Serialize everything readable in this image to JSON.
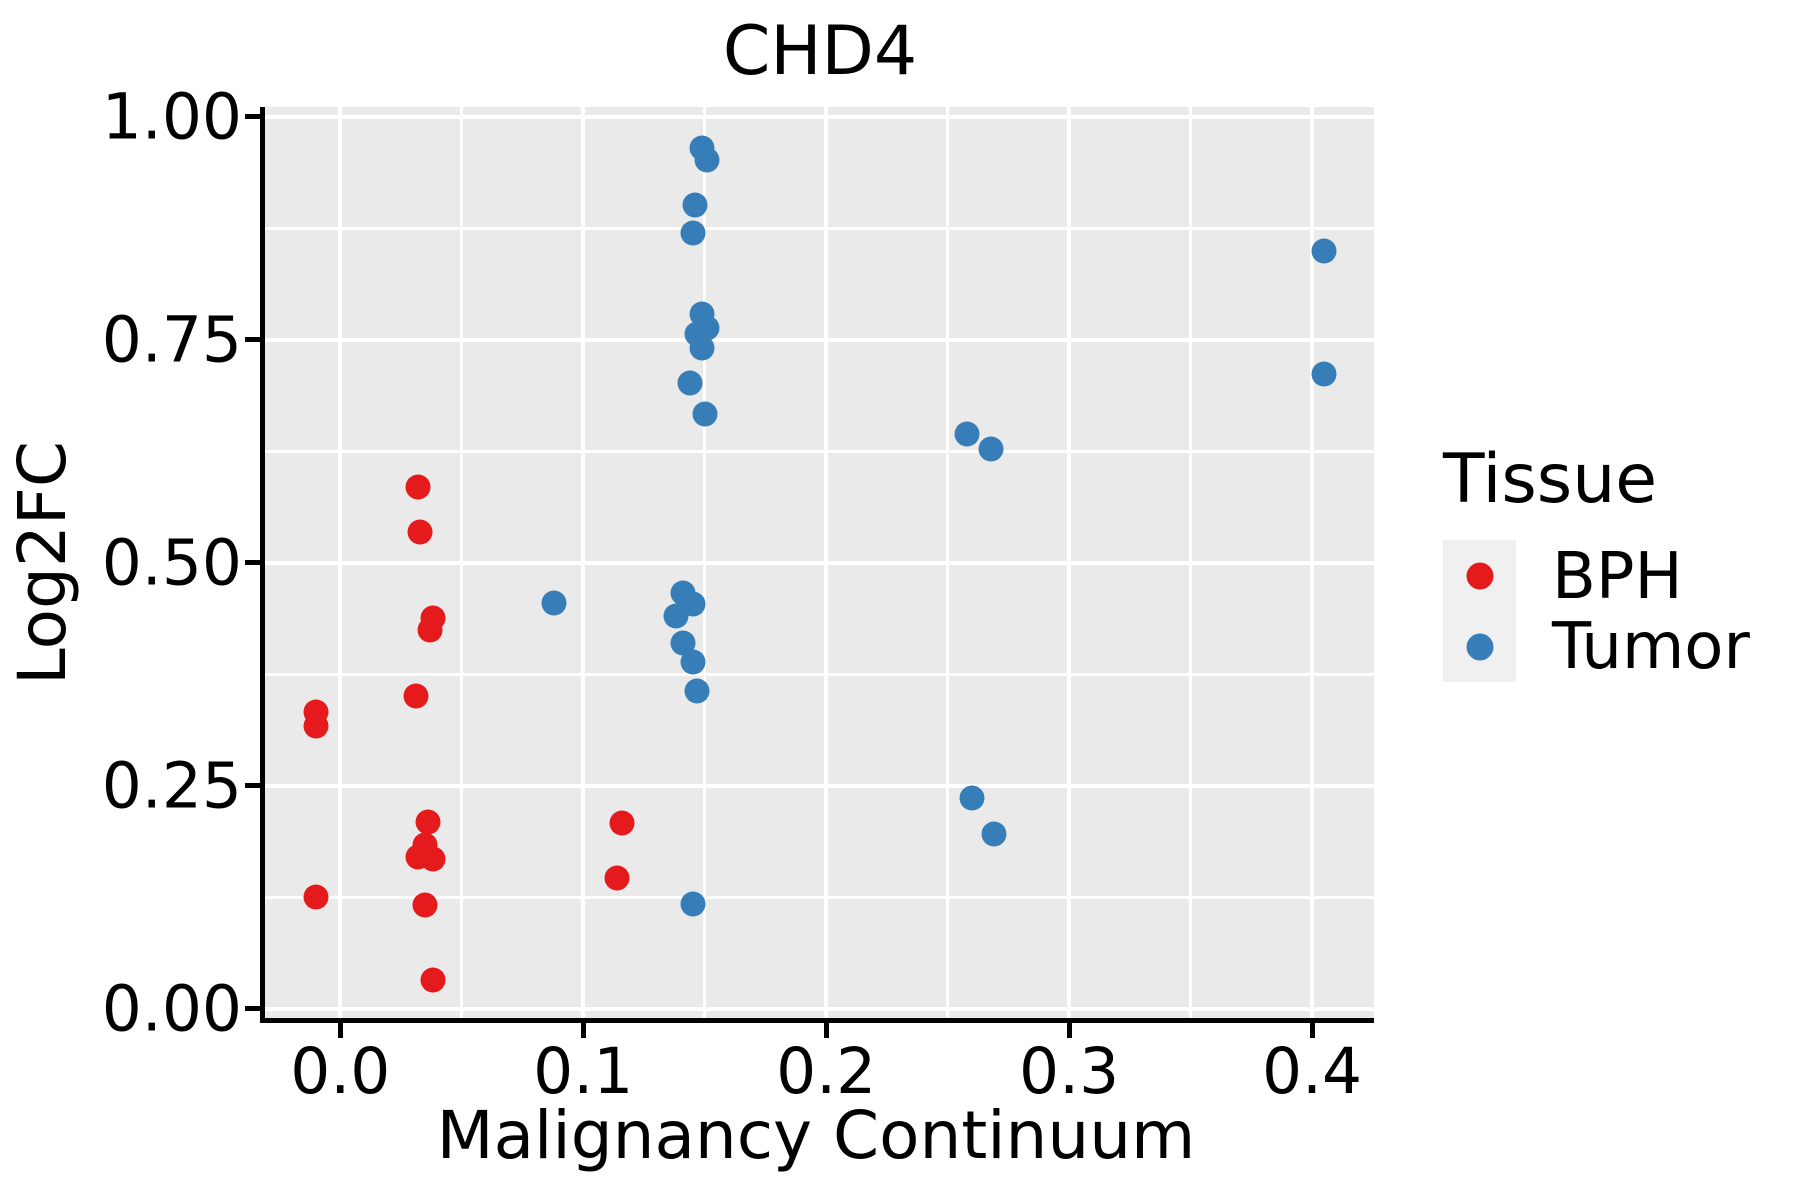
{
  "title": "CHD4",
  "colors": {
    "bph": "#E41A1C",
    "tumor": "#377EB8",
    "plot_background": "#EAEAEA",
    "gridline": "#FFFFFF",
    "axis": "#000000",
    "legend_key_background": "#F0F0F0"
  },
  "legend": {
    "title": "Tissue",
    "entries": [
      {
        "label": "BPH",
        "color": "#E41A1C"
      },
      {
        "label": "Tumor",
        "color": "#377EB8"
      }
    ]
  },
  "chart_data": {
    "type": "scatter",
    "title": "CHD4",
    "xlabel": "Malignancy Continuum",
    "ylabel": "Log2FC",
    "xlim": [
      -0.031,
      0.4255
    ],
    "ylim": [
      -0.0101,
      1.0112
    ],
    "x_ticks": [
      0.0,
      0.1,
      0.2,
      0.3,
      0.4
    ],
    "x_tick_labels": [
      "0.0",
      "0.1",
      "0.2",
      "0.3",
      "0.4"
    ],
    "x_minor_ticks": [
      0.05,
      0.15,
      0.25,
      0.35
    ],
    "y_ticks": [
      0.0,
      0.25,
      0.5,
      0.75,
      1.0
    ],
    "y_tick_labels": [
      "0.00",
      "0.25",
      "0.50",
      "0.75",
      "1.00"
    ],
    "y_minor_ticks": [
      0.125,
      0.375,
      0.625,
      0.875
    ],
    "grid": true,
    "legend_title": "Tissue",
    "legend_position": "right",
    "series": [
      {
        "name": "BPH",
        "color": "#E41A1C",
        "points": [
          [
            -0.01,
            0.333
          ],
          [
            -0.01,
            0.317
          ],
          [
            -0.01,
            0.126
          ],
          [
            0.032,
            0.585
          ],
          [
            0.033,
            0.535
          ],
          [
            0.038,
            0.438
          ],
          [
            0.037,
            0.425
          ],
          [
            0.031,
            0.351
          ],
          [
            0.036,
            0.21
          ],
          [
            0.035,
            0.184
          ],
          [
            0.032,
            0.17
          ],
          [
            0.038,
            0.168
          ],
          [
            0.035,
            0.117
          ],
          [
            0.038,
            0.033
          ],
          [
            0.116,
            0.209
          ],
          [
            0.114,
            0.147
          ]
        ]
      },
      {
        "name": "Tumor",
        "color": "#377EB8",
        "points": [
          [
            0.149,
            0.965
          ],
          [
            0.151,
            0.952
          ],
          [
            0.146,
            0.901
          ],
          [
            0.145,
            0.87
          ],
          [
            0.149,
            0.779
          ],
          [
            0.151,
            0.764
          ],
          [
            0.147,
            0.757
          ],
          [
            0.149,
            0.741
          ],
          [
            0.144,
            0.702
          ],
          [
            0.15,
            0.667
          ],
          [
            0.088,
            0.455
          ],
          [
            0.141,
            0.466
          ],
          [
            0.145,
            0.454
          ],
          [
            0.138,
            0.441
          ],
          [
            0.141,
            0.41
          ],
          [
            0.145,
            0.389
          ],
          [
            0.147,
            0.357
          ],
          [
            0.145,
            0.118
          ],
          [
            0.258,
            0.645
          ],
          [
            0.268,
            0.628
          ],
          [
            0.26,
            0.237
          ],
          [
            0.269,
            0.196
          ],
          [
            0.405,
            0.85
          ],
          [
            0.405,
            0.712
          ]
        ]
      }
    ]
  }
}
